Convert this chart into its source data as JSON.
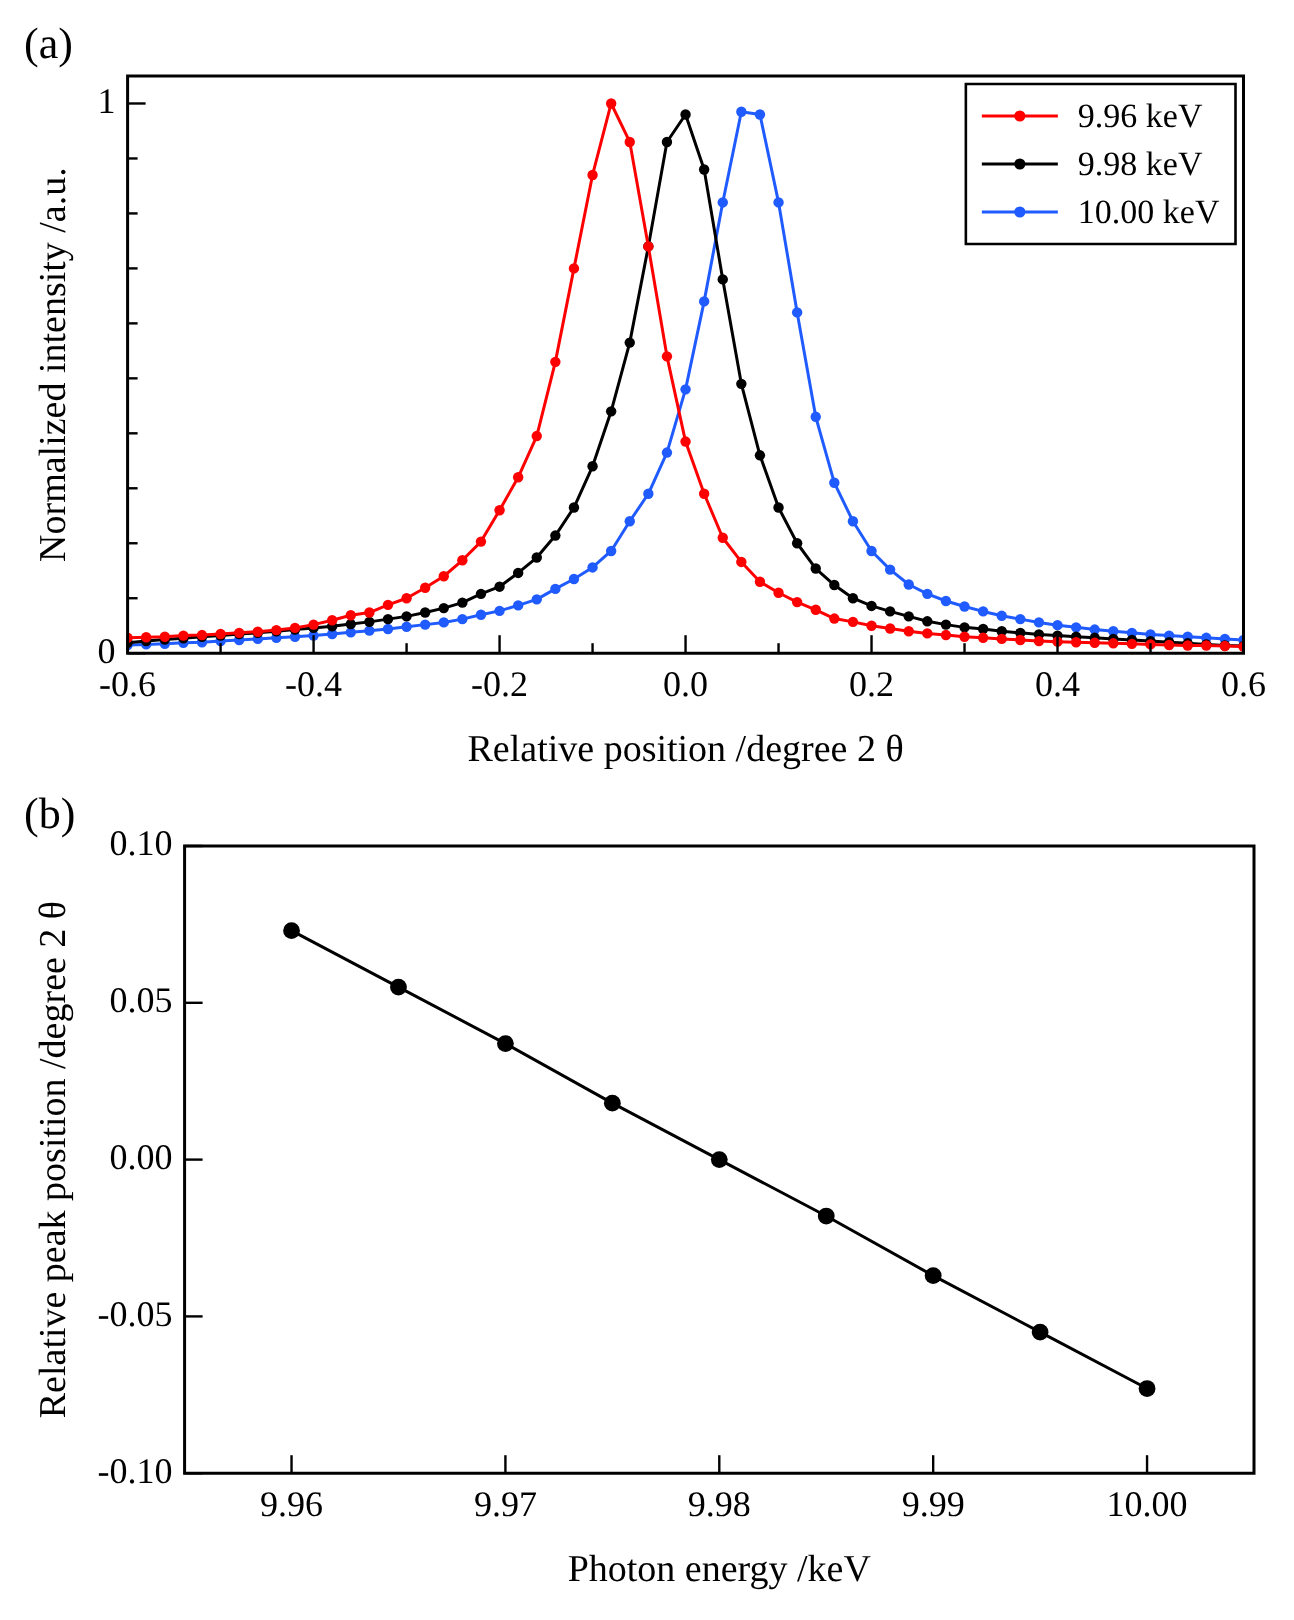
{
  "chart_data": [
    {
      "type": "line",
      "title": "(a)",
      "xlabel": "Relative position /degree 2 θ",
      "ylabel": "Normalized intensity /a.u.",
      "legend": "top right",
      "marker": "circle",
      "line_style": "solid",
      "grid": false,
      "xlim": [
        -0.6,
        0.6
      ],
      "ylim": [
        0,
        1.05
      ],
      "xticks": [
        -0.6,
        {
          "value": -0.5,
          "label": null
        },
        -0.4,
        {
          "value": -0.3,
          "label": null
        },
        -0.2,
        {
          "value": -0.1,
          "label": null
        },
        {
          "value": 0,
          "label": "0.0"
        },
        {
          "value": 0.1,
          "label": null
        },
        0.2,
        {
          "value": 0.3,
          "label": null
        },
        0.4,
        {
          "value": 0.5,
          "label": null
        },
        0.6
      ],
      "yticks": [
        0,
        {
          "value": 0.1,
          "label": null
        },
        {
          "value": 0.2,
          "label": null
        },
        {
          "value": 0.3,
          "label": null
        },
        {
          "value": 0.4,
          "label": null
        },
        {
          "value": 0.5,
          "label": null
        },
        {
          "value": 0.6,
          "label": null
        },
        {
          "value": 0.7,
          "label": null
        },
        {
          "value": 0.8,
          "label": null
        },
        {
          "value": 0.9,
          "label": null
        },
        1
      ],
      "x": [
        -0.6,
        -0.58,
        -0.56,
        -0.54,
        -0.52,
        -0.5,
        -0.48,
        -0.46,
        -0.44,
        -0.42,
        -0.4,
        -0.38,
        -0.36,
        -0.34,
        -0.32,
        -0.3,
        -0.28,
        -0.26,
        -0.24,
        -0.22,
        -0.2,
        -0.18,
        -0.16,
        -0.14,
        -0.12,
        -0.1,
        -0.08,
        -0.06,
        -0.04,
        -0.02,
        0,
        0.02,
        0.04,
        0.06,
        0.08,
        0.1,
        0.12,
        0.14,
        0.16,
        0.18,
        0.2,
        0.22,
        0.24,
        0.26,
        0.28,
        0.3,
        0.32,
        0.34,
        0.36,
        0.38,
        0.4,
        0.42,
        0.44,
        0.46,
        0.48,
        0.5,
        0.52,
        0.54,
        0.56,
        0.58,
        0.6
      ],
      "series": [
        {
          "name": "9.96 keV",
          "color": "#ff0000",
          "values": [
            0.028,
            0.029,
            0.03,
            0.032,
            0.033,
            0.035,
            0.037,
            0.039,
            0.042,
            0.046,
            0.052,
            0.06,
            0.069,
            0.074,
            0.088,
            0.1,
            0.119,
            0.14,
            0.169,
            0.203,
            0.26,
            0.32,
            0.395,
            0.53,
            0.7,
            0.87,
            1.0,
            0.93,
            0.74,
            0.54,
            0.385,
            0.29,
            0.21,
            0.166,
            0.13,
            0.11,
            0.093,
            0.079,
            0.063,
            0.057,
            0.05,
            0.045,
            0.04,
            0.036,
            0.033,
            0.03,
            0.028,
            0.026,
            0.024,
            0.022,
            0.021,
            0.02,
            0.019,
            0.018,
            0.017,
            0.016,
            0.015,
            0.014,
            0.014,
            0.013,
            0.012
          ]
        },
        {
          "name": "9.98 keV",
          "color": "#000000",
          "values": [
            0.019,
            0.022,
            0.025,
            0.027,
            0.03,
            0.032,
            0.035,
            0.037,
            0.04,
            0.043,
            0.046,
            0.049,
            0.053,
            0.057,
            0.062,
            0.067,
            0.074,
            0.082,
            0.092,
            0.108,
            0.121,
            0.146,
            0.174,
            0.214,
            0.265,
            0.34,
            0.44,
            0.565,
            0.74,
            0.93,
            0.98,
            0.88,
            0.68,
            0.49,
            0.36,
            0.265,
            0.2,
            0.154,
            0.124,
            0.1,
            0.086,
            0.076,
            0.067,
            0.058,
            0.052,
            0.047,
            0.044,
            0.04,
            0.037,
            0.034,
            0.032,
            0.03,
            0.028,
            0.026,
            0.024,
            0.022,
            0.02,
            0.018,
            0.016,
            0.014,
            0.013
          ]
        },
        {
          "name": "10.00 keV",
          "color": "#1f5bff",
          "values": [
            0.015,
            0.016,
            0.017,
            0.019,
            0.02,
            0.022,
            0.024,
            0.026,
            0.028,
            0.03,
            0.032,
            0.035,
            0.038,
            0.041,
            0.044,
            0.048,
            0.052,
            0.056,
            0.062,
            0.07,
            0.077,
            0.087,
            0.098,
            0.117,
            0.135,
            0.156,
            0.186,
            0.24,
            0.29,
            0.365,
            0.48,
            0.64,
            0.82,
            0.985,
            0.98,
            0.82,
            0.62,
            0.43,
            0.31,
            0.24,
            0.186,
            0.152,
            0.125,
            0.108,
            0.095,
            0.085,
            0.076,
            0.068,
            0.062,
            0.056,
            0.051,
            0.047,
            0.043,
            0.04,
            0.037,
            0.034,
            0.032,
            0.03,
            0.028,
            0.026,
            0.024
          ]
        }
      ]
    },
    {
      "type": "line",
      "title": "(b)",
      "xlabel": "Photon energy /keV",
      "ylabel": "Relative peak position /degree 2 θ",
      "marker": "circle",
      "line_style": "solid",
      "grid": false,
      "legend": false,
      "xlim": [
        9.955,
        10.005
      ],
      "ylim": [
        -0.1,
        0.1
      ],
      "xticks": [
        9.96,
        9.97,
        9.98,
        9.99,
        {
          "value": 10,
          "label": "10.00"
        }
      ],
      "yticks": [
        {
          "value": -0.1,
          "label": "-0.10"
        },
        {
          "value": -0.05,
          "label": "-0.05"
        },
        {
          "value": 0,
          "label": "0.00"
        },
        {
          "value": 0.05,
          "label": "0.05"
        },
        {
          "value": 0.1,
          "label": "0.10"
        }
      ],
      "x": [
        9.96,
        9.965,
        9.97,
        9.975,
        9.98,
        9.985,
        9.99,
        9.995,
        10
      ],
      "series": [
        {
          "color": "#000000",
          "values": [
            0.073,
            0.055,
            0.037,
            0.018,
            0,
            -0.018,
            -0.037,
            -0.055,
            -0.073
          ]
        }
      ]
    }
  ]
}
